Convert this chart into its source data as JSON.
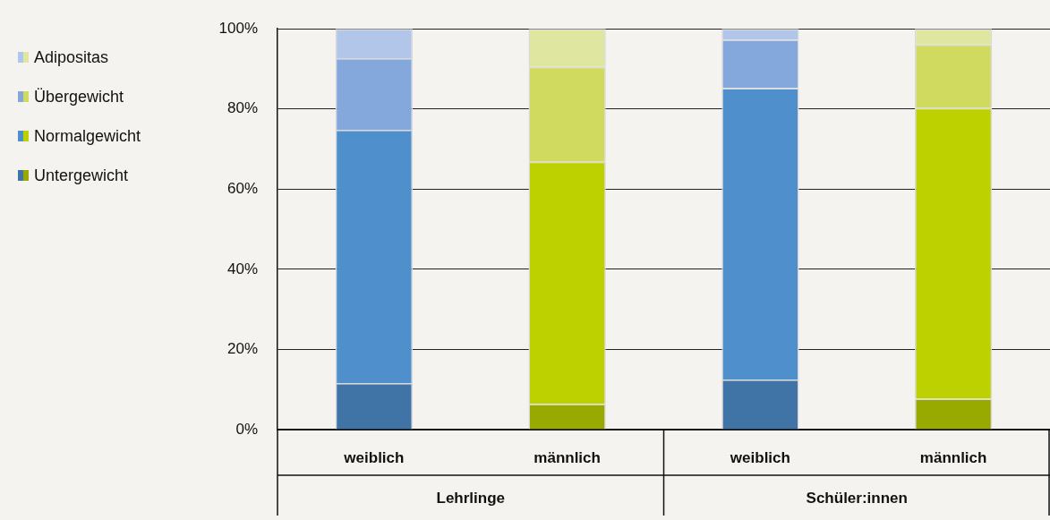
{
  "chart_data": {
    "type": "bar",
    "stacked": true,
    "categories": [
      "weiblich",
      "männlich",
      "weiblich",
      "männlich"
    ],
    "series": [
      {
        "name": "Untergewicht",
        "colors": [
          "#4174a6",
          "#98aa00",
          "#4174a6",
          "#98aa00"
        ],
        "values": [
          11.6,
          6.4,
          12.5,
          7.7
        ]
      },
      {
        "name": "Normalgewicht",
        "colors": [
          "#4f8fcc",
          "#bdd000",
          "#4f8fcc",
          "#bdd000"
        ],
        "values": [
          63.2,
          60.4,
          72.7,
          72.5
        ]
      },
      {
        "name": "Übergewicht",
        "colors": [
          "#84a8db",
          "#d0da5e",
          "#84a8db",
          "#d0da5e"
        ],
        "values": [
          17.9,
          23.7,
          12.1,
          15.9
        ]
      },
      {
        "name": "Adipositas",
        "colors": [
          "#b1c6e8",
          "#dfe6a0",
          "#b1c6e8",
          "#dfe6a0"
        ],
        "values": [
          7.3,
          9.5,
          2.7,
          3.9
        ]
      }
    ],
    "ylim": [
      0,
      100
    ],
    "yticks": [
      {
        "value": 0,
        "label": "0%"
      },
      {
        "value": 20,
        "label": "20%"
      },
      {
        "value": 40,
        "label": "40%"
      },
      {
        "value": 60,
        "label": "60%"
      },
      {
        "value": 80,
        "label": "80%"
      },
      {
        "value": 100,
        "label": "100%"
      }
    ],
    "grid": "y",
    "legend": "top left",
    "annotations": [
      "Lehrlinge",
      "Schüler:innen"
    ]
  }
}
